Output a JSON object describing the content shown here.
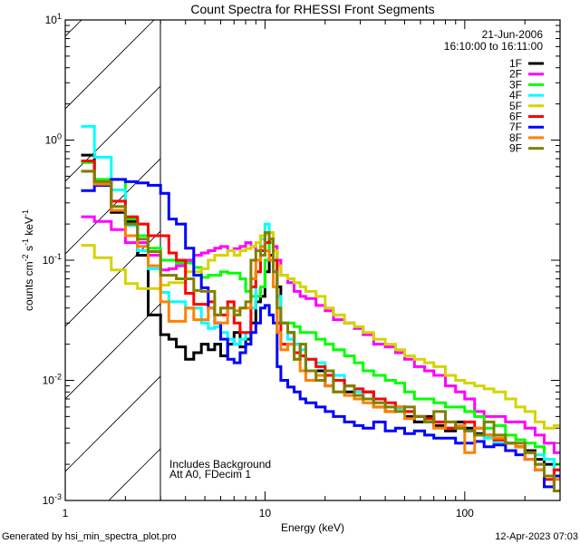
{
  "chart_data": {
    "type": "line",
    "title": "Count Spectra for RHESSI Front Segments",
    "xlabel": "Energy (keV)",
    "ylabel": {
      "base": "counts cm",
      "exp1": "-2",
      "mid": " s",
      "exp2": "-1",
      "mid2": " keV",
      "exp3": "-1"
    },
    "xscale": "log",
    "yscale": "log",
    "xlim": [
      1,
      300
    ],
    "ylim": [
      0.001,
      10
    ],
    "x_ticks": [
      {
        "value": 1,
        "label": "1"
      },
      {
        "value": 10,
        "label": "10"
      },
      {
        "value": 100,
        "label": "100"
      }
    ],
    "y_ticks": [
      {
        "value": 10,
        "base": "10",
        "exp": "1"
      },
      {
        "value": 1,
        "base": "10",
        "exp": "0"
      },
      {
        "value": 0.1,
        "base": "10",
        "exp": "-1"
      },
      {
        "value": 0.01,
        "base": "10",
        "exp": "-2"
      },
      {
        "value": 0.001,
        "base": "10",
        "exp": "-3"
      }
    ],
    "hatched_region_keV": [
      1,
      3
    ],
    "date": "21-Jun-2006",
    "time_range": "16:10:00 to 16:11:00",
    "annotations": [
      "Includes Background",
      "Att A0, FDecim 1"
    ],
    "legend_position": "top-right",
    "energy_bins_keV": [
      1.2,
      1.4,
      1.7,
      2.0,
      2.3,
      2.6,
      3.0,
      3.3,
      3.6,
      4.0,
      4.4,
      4.8,
      5.2,
      5.6,
      6.0,
      6.5,
      7.0,
      7.5,
      8.0,
      8.5,
      9.0,
      9.5,
      10.0,
      10.5,
      11.0,
      11.5,
      12,
      13,
      14,
      15,
      16,
      18,
      20,
      22,
      25,
      28,
      31,
      35,
      40,
      45,
      50,
      56,
      63,
      70,
      80,
      90,
      100,
      112,
      125,
      140,
      160,
      180,
      200,
      225,
      250,
      280
    ],
    "energy_max_keV": 300,
    "series": [
      {
        "name": "1F",
        "color": "#000000",
        "values": [
          0.75,
          0.42,
          0.25,
          0.21,
          0.11,
          0.035,
          0.024,
          0.022,
          0.019,
          0.015,
          0.017,
          0.02,
          0.018,
          0.02,
          0.016,
          0.02,
          0.025,
          0.019,
          0.022,
          0.03,
          0.045,
          0.05,
          0.08,
          0.11,
          0.12,
          0.06,
          0.03,
          0.025,
          0.02,
          0.016,
          0.012,
          0.012,
          0.009,
          0.01,
          0.008,
          0.007,
          0.008,
          0.006,
          0.0055,
          0.006,
          0.005,
          0.0045,
          0.005,
          0.0042,
          0.0038,
          0.0045,
          0.004,
          0.0036,
          0.0035,
          0.0032,
          0.003,
          0.0028,
          0.0026,
          0.0022,
          0.002,
          0.0018
        ]
      },
      {
        "name": "2F",
        "color": "#ff00ff",
        "values": [
          0.23,
          0.21,
          0.18,
          0.14,
          0.14,
          0.11,
          0.083,
          0.085,
          0.09,
          0.1,
          0.11,
          0.115,
          0.12,
          0.126,
          0.13,
          0.12,
          0.125,
          0.13,
          0.14,
          0.13,
          0.12,
          0.13,
          0.14,
          0.15,
          0.13,
          0.1,
          0.075,
          0.065,
          0.055,
          0.05,
          0.048,
          0.042,
          0.038,
          0.032,
          0.03,
          0.027,
          0.024,
          0.02,
          0.019,
          0.017,
          0.015,
          0.013,
          0.012,
          0.011,
          0.009,
          0.008,
          0.007,
          0.0055,
          0.005,
          0.005,
          0.0045,
          0.0045,
          0.004,
          0.0035,
          0.003,
          0.0025
        ]
      },
      {
        "name": "3F",
        "color": "#00ff00",
        "values": [
          0.65,
          0.47,
          0.47,
          0.22,
          0.16,
          0.126,
          0.1,
          0.1,
          0.095,
          0.095,
          0.087,
          0.072,
          0.075,
          0.075,
          0.08,
          0.078,
          0.078,
          0.07,
          0.055,
          0.05,
          0.05,
          0.06,
          0.1,
          0.14,
          0.12,
          0.05,
          0.03,
          0.03,
          0.028,
          0.025,
          0.025,
          0.022,
          0.02,
          0.018,
          0.016,
          0.014,
          0.012,
          0.011,
          0.01,
          0.0095,
          0.008,
          0.007,
          0.007,
          0.0065,
          0.006,
          0.006,
          0.0055,
          0.005,
          0.004,
          0.0042,
          0.0035,
          0.0032,
          0.003,
          0.0028,
          0.0022,
          0.002
        ]
      },
      {
        "name": "4F",
        "color": "#00ffff",
        "values": [
          1.3,
          0.72,
          0.385,
          0.195,
          0.12,
          0.085,
          0.054,
          0.045,
          0.045,
          0.04,
          0.04,
          0.03,
          0.027,
          0.028,
          0.025,
          0.022,
          0.02,
          0.022,
          0.025,
          0.04,
          0.08,
          0.15,
          0.2,
          0.17,
          0.1,
          0.05,
          0.03,
          0.022,
          0.02,
          0.018,
          0.015,
          0.014,
          0.012,
          0.011,
          0.009,
          0.008,
          0.007,
          0.0065,
          0.006,
          0.0058,
          0.0055,
          0.005,
          0.0045,
          0.0045,
          0.004,
          0.0042,
          0.0038,
          0.0035,
          0.0033,
          0.003,
          0.003,
          0.0028,
          0.0025,
          0.0024,
          0.0022,
          0.0018
        ]
      },
      {
        "name": "5F",
        "color": "#d4d400",
        "values": [
          0.133,
          0.105,
          0.083,
          0.064,
          0.058,
          0.058,
          0.062,
          0.065,
          0.065,
          0.08,
          0.08,
          0.085,
          0.1,
          0.11,
          0.11,
          0.12,
          0.11,
          0.12,
          0.125,
          0.13,
          0.14,
          0.16,
          0.165,
          0.17,
          0.12,
          0.09,
          0.075,
          0.07,
          0.065,
          0.06,
          0.055,
          0.05,
          0.04,
          0.035,
          0.03,
          0.028,
          0.025,
          0.022,
          0.02,
          0.018,
          0.016,
          0.015,
          0.014,
          0.013,
          0.011,
          0.01,
          0.0095,
          0.009,
          0.0085,
          0.008,
          0.007,
          0.006,
          0.0055,
          0.0045,
          0.004,
          0.0042
        ]
      },
      {
        "name": "6F",
        "color": "#ff0000",
        "values": [
          0.67,
          0.42,
          0.31,
          0.23,
          0.2,
          0.16,
          0.16,
          0.115,
          0.1,
          0.053,
          0.043,
          0.043,
          0.045,
          0.035,
          0.035,
          0.045,
          0.03,
          0.025,
          0.025,
          0.06,
          0.08,
          0.12,
          0.14,
          0.15,
          0.1,
          0.03,
          0.02,
          0.02,
          0.017,
          0.016,
          0.015,
          0.013,
          0.011,
          0.01,
          0.009,
          0.0085,
          0.008,
          0.007,
          0.0065,
          0.006,
          0.0055,
          0.005,
          0.0048,
          0.0045,
          0.004,
          0.004,
          0.0045,
          0.004,
          0.0035,
          0.0032,
          0.003,
          0.0028,
          0.0025,
          0.002,
          0.0015,
          0.0018
        ]
      },
      {
        "name": "7F",
        "color": "#0000ff",
        "values": [
          0.38,
          0.42,
          0.47,
          0.45,
          0.44,
          0.42,
          0.36,
          0.22,
          0.2,
          0.126,
          0.075,
          0.059,
          0.04,
          0.03,
          0.022,
          0.015,
          0.014,
          0.017,
          0.02,
          0.025,
          0.03,
          0.04,
          0.042,
          0.035,
          0.03,
          0.013,
          0.01,
          0.0088,
          0.008,
          0.007,
          0.0065,
          0.006,
          0.0055,
          0.005,
          0.0045,
          0.0042,
          0.004,
          0.0045,
          0.0038,
          0.004,
          0.0036,
          0.0038,
          0.0035,
          0.0033,
          0.0033,
          0.003,
          0.003,
          0.0031,
          0.0028,
          0.0029,
          0.0026,
          0.0024,
          0.0022,
          0.0018,
          0.0013,
          0.0016
        ]
      },
      {
        "name": "8F",
        "color": "#ff8000",
        "values": [
          0.55,
          0.43,
          0.26,
          0.16,
          0.13,
          0.09,
          0.045,
          0.031,
          0.031,
          0.04,
          0.032,
          0.032,
          0.04,
          0.03,
          0.03,
          0.04,
          0.038,
          0.04,
          0.04,
          0.07,
          0.1,
          0.13,
          0.12,
          0.1,
          0.06,
          0.025,
          0.018,
          0.02,
          0.015,
          0.012,
          0.01,
          0.011,
          0.009,
          0.008,
          0.0075,
          0.007,
          0.0065,
          0.006,
          0.0055,
          0.006,
          0.0048,
          0.005,
          0.0045,
          0.004,
          0.0045,
          0.0042,
          0.0025,
          0.004,
          0.0035,
          0.0033,
          0.003,
          0.0028,
          0.0022,
          0.0018,
          0.0016,
          0.0015
        ]
      },
      {
        "name": "9F",
        "color": "#808000",
        "values": [
          0.55,
          0.45,
          0.28,
          0.2,
          0.15,
          0.118,
          0.075,
          0.075,
          0.07,
          0.07,
          0.056,
          0.055,
          0.055,
          0.035,
          0.04,
          0.04,
          0.035,
          0.04,
          0.045,
          0.1,
          0.12,
          0.11,
          0.17,
          0.15,
          0.08,
          0.04,
          0.03,
          0.025,
          0.015,
          0.02,
          0.012,
          0.01,
          0.012,
          0.008,
          0.009,
          0.0075,
          0.007,
          0.0065,
          0.006,
          0.0055,
          0.006,
          0.005,
          0.0045,
          0.0055,
          0.0045,
          0.004,
          0.0038,
          0.0035,
          0.0045,
          0.0035,
          0.003,
          0.003,
          0.0025,
          0.002,
          0.0016,
          0.0012
        ]
      }
    ]
  },
  "footer": {
    "generated_by": "Generated by hsi_min_spectra_plot.pro",
    "timestamp": "12-Apr-2023 07:03"
  }
}
